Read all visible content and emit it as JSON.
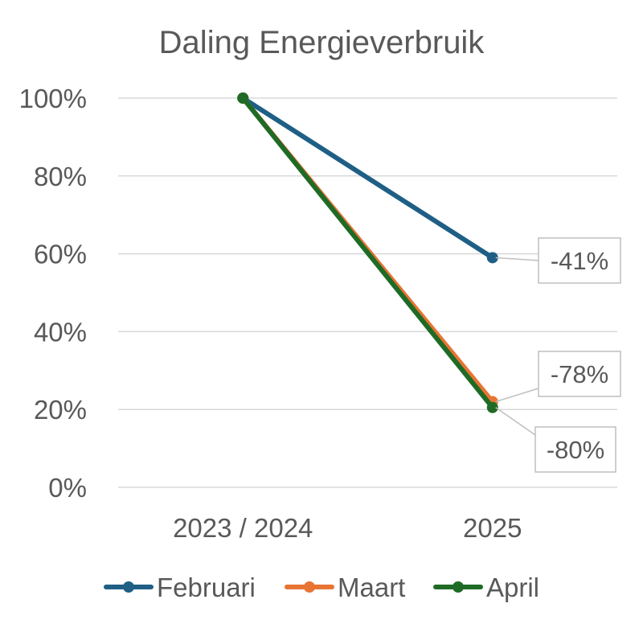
{
  "chart_data": {
    "type": "line",
    "title": "Daling Energieverbruik",
    "categories": [
      "2023 / 2024",
      "2025"
    ],
    "ylim": [
      0,
      100
    ],
    "yticks": [
      0,
      20,
      40,
      60,
      80,
      100
    ],
    "ytick_labels": [
      "0%",
      "20%",
      "40%",
      "60%",
      "80%",
      "100%"
    ],
    "grid": true,
    "legend_position": "bottom",
    "series": [
      {
        "name": "Februari",
        "values": [
          100,
          59
        ],
        "color": "#1f5f86",
        "label": "-41%"
      },
      {
        "name": "Maart",
        "values": [
          100,
          22
        ],
        "color": "#e87434",
        "label": "-78%"
      },
      {
        "name": "April",
        "values": [
          100,
          20.5
        ],
        "color": "#1f6b26",
        "label": "-80%"
      }
    ]
  }
}
